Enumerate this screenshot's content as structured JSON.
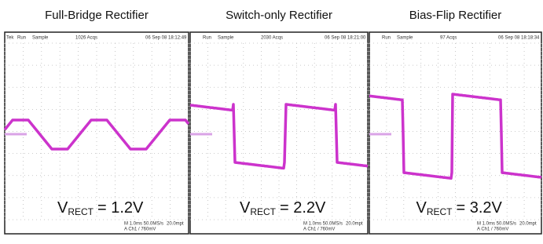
{
  "panels": [
    {
      "title": "Full-Bridge Rectifier",
      "header": {
        "brand": "Tek",
        "mode": "Run",
        "acquire": "Sample",
        "count": "1026 Acqs",
        "timestamp": "06 Sep 08 18:12:49"
      },
      "label": {
        "symbol": "V",
        "subscript": "RECT",
        "value": "= 1.2V"
      },
      "footer": {
        "timebase": "M 1.0ms 50.0MS/s",
        "record": "20.0mpt",
        "trigger": "A Ch1 / 760mV"
      }
    },
    {
      "title": "Switch-only Rectifier",
      "header": {
        "mode": "Run",
        "acquire": "Sample",
        "count": "2030 Acqs",
        "timestamp": "06 Sep 08 18:21:00"
      },
      "label": {
        "symbol": "V",
        "subscript": "RECT",
        "value": "= 2.2V"
      },
      "footer": {
        "timebase": "M 1.0ms 50.0MS/s",
        "record": "20.0mpt",
        "trigger": "A Ch1 / 760mV"
      }
    },
    {
      "title": "Bias-Flip Rectifier",
      "header": {
        "mode": "Run",
        "acquire": "Sample",
        "count": "97 Acqs",
        "timestamp": "06 Sep 08 18:18:34"
      },
      "label": {
        "symbol": "V",
        "subscript": "RECT",
        "value": "= 3.2V"
      },
      "footer": {
        "timebase": "M 1.0ms 50.0MS/s",
        "record": "20.0mpt",
        "trigger": "A Ch1 / 760mV"
      }
    }
  ]
}
